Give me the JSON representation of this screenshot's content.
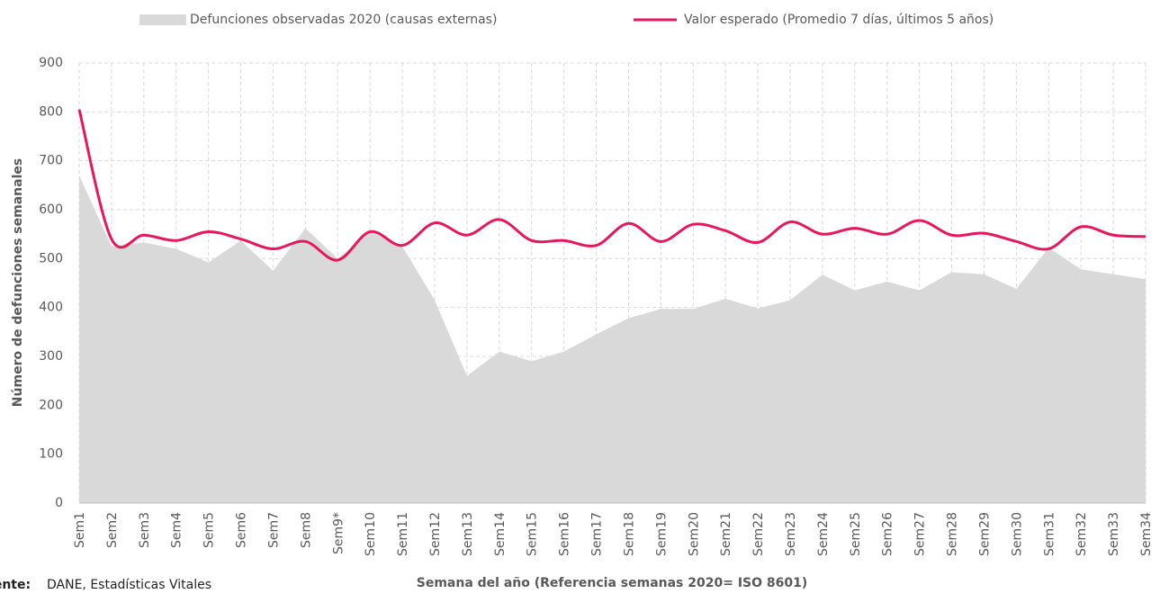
{
  "chart_data": {
    "type": "area-line",
    "xlabel": "Semana del año (Referencia semanas 2020= ISO 8601)",
    "ylabel": "Número de defunciones semanales",
    "source_label": "Fuente:",
    "source": "DANE, Estadísticas Vitales",
    "categories": [
      "Sem1",
      "Sem2",
      "Sem3",
      "Sem4",
      "Sem5",
      "Sem6",
      "Sem7",
      "Sem8",
      "Sem9*",
      "Sem10",
      "Sem11",
      "Sem12",
      "Sem13",
      "Sem14",
      "Sem15",
      "Sem16",
      "Sem17",
      "Sem18",
      "Sem19",
      "Sem20",
      "Sem21",
      "Sem22",
      "Sem23",
      "Sem24",
      "Sem25",
      "Sem26",
      "Sem27",
      "Sem28",
      "Sem29",
      "Sem30",
      "Sem31",
      "Sem32",
      "Sem33",
      "Sem34"
    ],
    "series": [
      {
        "name": "Defunciones observadas 2020 (causas externas)",
        "kind": "area",
        "color": "#d9d9d9",
        "values": [
          670,
          525,
          533,
          520,
          492,
          537,
          475,
          562,
          500,
          555,
          525,
          415,
          260,
          310,
          290,
          310,
          345,
          378,
          397,
          397,
          418,
          398,
          415,
          467,
          435,
          453,
          435,
          472,
          468,
          438,
          522,
          478,
          468,
          458
        ]
      },
      {
        "name": "Valor esperado (Promedio 7 días, últimos 5 años)",
        "kind": "line",
        "color": "#e8175d",
        "values": [
          805,
          540,
          548,
          537,
          555,
          540,
          520,
          535,
          497,
          555,
          527,
          573,
          548,
          580,
          537,
          537,
          527,
          572,
          535,
          570,
          557,
          533,
          575,
          550,
          562,
          550,
          578,
          548,
          552,
          535,
          520,
          565,
          548,
          545
        ]
      }
    ],
    "ylim": [
      0,
      900
    ],
    "yticks": [
      0,
      100,
      200,
      300,
      400,
      500,
      600,
      700,
      800,
      900
    ],
    "grid": true
  }
}
